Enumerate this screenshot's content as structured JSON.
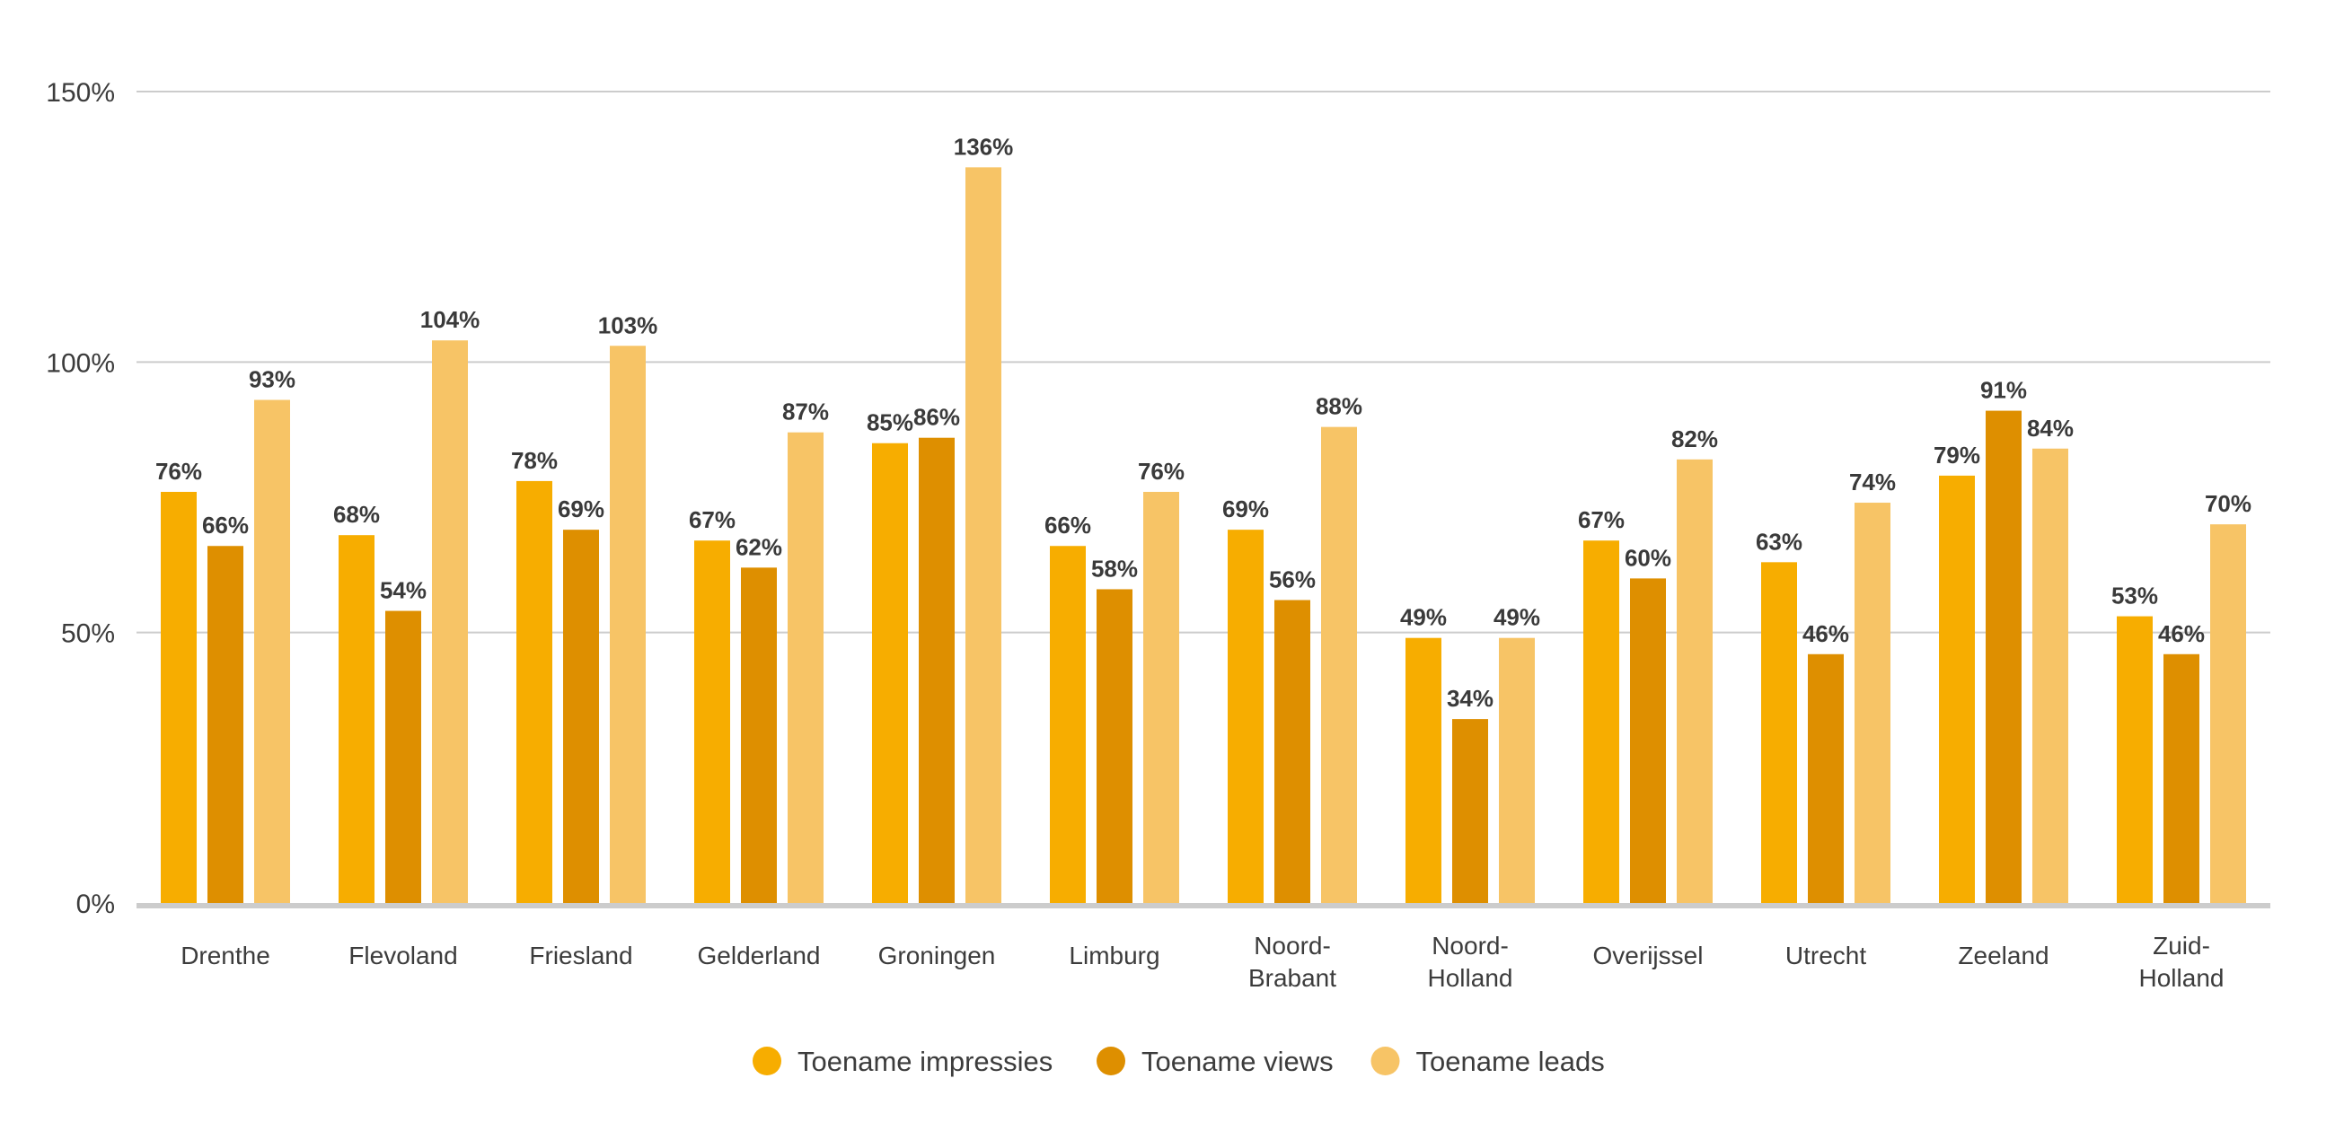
{
  "chart_data": {
    "type": "bar",
    "categories": [
      [
        "Drenthe"
      ],
      [
        "Flevoland"
      ],
      [
        "Friesland"
      ],
      [
        "Gelderland"
      ],
      [
        "Groningen"
      ],
      [
        "Limburg"
      ],
      [
        "Noord-",
        "Brabant"
      ],
      [
        "Noord-",
        "Holland"
      ],
      [
        "Overijssel"
      ],
      [
        "Utrecht"
      ],
      [
        "Zeeland"
      ],
      [
        "Zuid-",
        "Holland"
      ]
    ],
    "series": [
      {
        "name": "Toename impressies",
        "color": "#F7AD00",
        "values": [
          76,
          68,
          78,
          67,
          85,
          66,
          69,
          49,
          67,
          63,
          79,
          53
        ]
      },
      {
        "name": "Toename views",
        "color": "#DE8F00",
        "values": [
          66,
          54,
          69,
          62,
          86,
          58,
          56,
          34,
          60,
          46,
          91,
          46
        ]
      },
      {
        "name": "Toename leads",
        "color": "#F7C466",
        "values": [
          93,
          104,
          103,
          87,
          136,
          76,
          88,
          49,
          82,
          74,
          84,
          70
        ]
      }
    ],
    "ylim": [
      0,
      150
    ],
    "yticks": [
      0,
      50,
      100,
      150
    ],
    "value_suffix": "%",
    "grid": true,
    "legend_position": "bottom-center",
    "gridline_color": "#cccccc",
    "baseline_color": "#cccccc",
    "title": "",
    "xlabel": "",
    "ylabel": ""
  }
}
